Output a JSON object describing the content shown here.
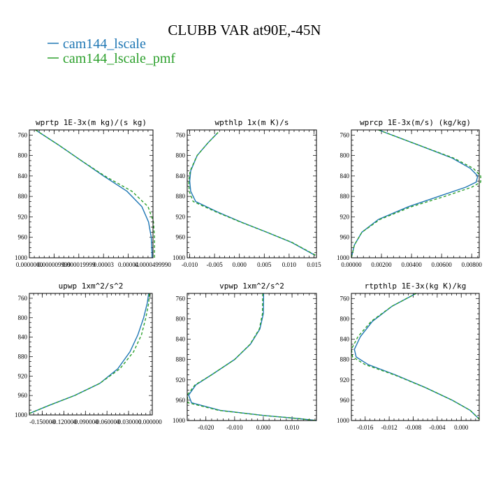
{
  "title": "CLUBB VAR at90E,-45N",
  "legend": [
    {
      "name": "cam144_lscale",
      "color": "#1f77b4",
      "dash": "none"
    },
    {
      "name": "cam144_lscale_pmf",
      "color": "#2ca02c",
      "dash": "4,3"
    }
  ],
  "chart_data": [
    {
      "type": "line",
      "title": "wprtp  1E-3x(m kg)/(s kg)",
      "y_ticks": [
        760,
        800,
        840,
        880,
        920,
        960,
        1000
      ],
      "ylim": [
        1000,
        750
      ],
      "x_ticks": [
        0.0,
        1e-05,
        2e-05,
        3e-05,
        4e-05,
        5e-05
      ],
      "x_tick_labels": [
        "0.0000000",
        "0.000009999",
        "0.000019999",
        "0.00003",
        "0.00004",
        "0.0000499990"
      ],
      "xlim": [
        0.0,
        5e-05
      ],
      "series": [
        {
          "name": "cam144_lscale",
          "points": [
            [
              2.5e-06,
              750
            ],
            [
              1.2e-05,
              780
            ],
            [
              2.1e-05,
              810
            ],
            [
              3e-05,
              840
            ],
            [
              3.95e-05,
              870
            ],
            [
              4.55e-05,
              900
            ],
            [
              4.82e-05,
              930
            ],
            [
              4.93e-05,
              960
            ],
            [
              4.96e-05,
              990
            ],
            [
              4.96e-05,
              1000
            ]
          ]
        },
        {
          "name": "cam144_lscale_pmf",
          "points": [
            [
              2.5e-06,
              750
            ],
            [
              1.2e-05,
              780
            ],
            [
              2.1e-05,
              810
            ],
            [
              3.05e-05,
              840
            ],
            [
              4.15e-05,
              870
            ],
            [
              4.8e-05,
              900
            ],
            [
              5.02e-05,
              930
            ],
            [
              5.06e-05,
              960
            ],
            [
              5.06e-05,
              990
            ],
            [
              5.06e-05,
              1000
            ]
          ]
        }
      ]
    },
    {
      "type": "line",
      "title": "wpthlp  1x(m K)/s",
      "y_ticks": [
        760,
        800,
        840,
        880,
        920,
        960,
        1000
      ],
      "ylim": [
        1000,
        750
      ],
      "x_ticks": [
        -0.01,
        -0.005,
        0.0,
        0.005,
        0.01,
        0.015
      ],
      "x_tick_labels": [
        "-0.010",
        "-0.005",
        "0.000",
        "0.005",
        "0.010",
        "0.015"
      ],
      "xlim": [
        -0.0105,
        0.0155
      ],
      "series": [
        {
          "name": "cam144_lscale",
          "points": [
            [
              -0.0043,
              755
            ],
            [
              -0.0063,
              775
            ],
            [
              -0.0085,
              800
            ],
            [
              -0.0098,
              830
            ],
            [
              -0.01,
              850
            ],
            [
              -0.0098,
              870
            ],
            [
              -0.0088,
              890
            ],
            [
              -0.0045,
              910
            ],
            [
              0.0003,
              930
            ],
            [
              0.0055,
              950
            ],
            [
              0.0105,
              970
            ],
            [
              0.0152,
              995
            ]
          ]
        },
        {
          "name": "cam144_lscale_pmf",
          "points": [
            [
              -0.0043,
              755
            ],
            [
              -0.0063,
              775
            ],
            [
              -0.0085,
              800
            ],
            [
              -0.0099,
              830
            ],
            [
              -0.0102,
              850
            ],
            [
              -0.0101,
              870
            ],
            [
              -0.0093,
              890
            ],
            [
              -0.0048,
              910
            ],
            [
              0.0002,
              930
            ],
            [
              0.0055,
              950
            ],
            [
              0.0106,
              970
            ],
            [
              0.0153,
              995
            ]
          ]
        }
      ]
    },
    {
      "type": "line",
      "title": "wprcp  1E-3x(m/s) (kg/kg)",
      "y_ticks": [
        760,
        800,
        840,
        880,
        920,
        960,
        1000
      ],
      "ylim": [
        1000,
        750
      ],
      "x_ticks": [
        0.0,
        0.002,
        0.004,
        0.006,
        0.008
      ],
      "x_tick_labels": [
        "0.00000",
        "0.00200",
        "0.00400",
        "0.00600",
        "0.00800"
      ],
      "xlim": [
        0.0,
        0.0085
      ],
      "series": [
        {
          "name": "cam144_lscale",
          "points": [
            [
              0.0018,
              750
            ],
            [
              0.0045,
              780
            ],
            [
              0.0067,
              805
            ],
            [
              0.0079,
              825
            ],
            [
              0.0084,
              840
            ],
            [
              0.0083,
              852
            ],
            [
              0.0076,
              862
            ],
            [
              0.0058,
              880
            ],
            [
              0.0038,
              900
            ],
            [
              0.0018,
              925
            ],
            [
              0.0007,
              950
            ],
            [
              0.0002,
              975
            ],
            [
              0.0,
              1000
            ]
          ]
        },
        {
          "name": "cam144_lscale_pmf",
          "points": [
            [
              0.0018,
              750
            ],
            [
              0.0045,
              780
            ],
            [
              0.0068,
              805
            ],
            [
              0.0081,
              825
            ],
            [
              0.0086,
              840
            ],
            [
              0.0086,
              852
            ],
            [
              0.008,
              862
            ],
            [
              0.0062,
              880
            ],
            [
              0.004,
              900
            ],
            [
              0.0019,
              925
            ],
            [
              0.0007,
              950
            ],
            [
              0.0002,
              975
            ],
            [
              0.0,
              1000
            ]
          ]
        }
      ]
    },
    {
      "type": "line",
      "title": "upwp  1xm^2/s^2",
      "y_ticks": [
        760,
        800,
        840,
        880,
        920,
        960,
        1000
      ],
      "ylim": [
        1000,
        750
      ],
      "x_ticks": [
        -0.15,
        -0.12,
        -0.09,
        -0.06,
        -0.03,
        0.0
      ],
      "x_tick_labels": [
        "-0.150000",
        "-0.120000",
        "-0.090000",
        "-0.060000",
        "-0.030000",
        "0.000000"
      ],
      "xlim": [
        -0.168,
        0.003
      ],
      "series": [
        {
          "name": "cam144_lscale",
          "points": [
            [
              -0.168,
              997
            ],
            [
              -0.14,
              980
            ],
            [
              -0.105,
              960
            ],
            [
              -0.07,
              935
            ],
            [
              -0.045,
              905
            ],
            [
              -0.028,
              870
            ],
            [
              -0.017,
              835
            ],
            [
              -0.009,
              800
            ],
            [
              -0.004,
              770
            ],
            [
              -0.002,
              750
            ]
          ]
        },
        {
          "name": "cam144_lscale_pmf",
          "points": [
            [
              -0.168,
              997
            ],
            [
              -0.14,
              980
            ],
            [
              -0.105,
              960
            ],
            [
              -0.07,
              935
            ],
            [
              -0.042,
              905
            ],
            [
              -0.023,
              870
            ],
            [
              -0.012,
              835
            ],
            [
              -0.006,
              800
            ],
            [
              -0.002,
              770
            ],
            [
              -0.001,
              750
            ]
          ]
        }
      ]
    },
    {
      "type": "line",
      "title": "vpwp  1xm^2/s^2",
      "y_ticks": [
        760,
        800,
        840,
        880,
        920,
        960,
        1000
      ],
      "ylim": [
        1000,
        750
      ],
      "x_ticks": [
        -0.02,
        -0.01,
        0.0,
        0.01
      ],
      "x_tick_labels": [
        "-0.020",
        "-0.010",
        "0.000",
        "0.010"
      ],
      "xlim": [
        -0.0265,
        0.0185
      ],
      "series": [
        {
          "name": "cam144_lscale",
          "points": [
            [
              0.0001,
              750
            ],
            [
              0.0,
              790
            ],
            [
              -0.0012,
              820
            ],
            [
              -0.0045,
              850
            ],
            [
              -0.01,
              880
            ],
            [
              -0.018,
              910
            ],
            [
              -0.0235,
              930
            ],
            [
              -0.026,
              950
            ],
            [
              -0.025,
              965
            ],
            [
              -0.015,
              980
            ],
            [
              0.0,
              990
            ],
            [
              0.012,
              996
            ],
            [
              0.0185,
              1000
            ]
          ]
        },
        {
          "name": "cam144_lscale_pmf",
          "points": [
            [
              -0.0002,
              750
            ],
            [
              -0.0003,
              790
            ],
            [
              -0.0014,
              820
            ],
            [
              -0.0046,
              850
            ],
            [
              -0.01,
              880
            ],
            [
              -0.018,
              910
            ],
            [
              -0.0238,
              930
            ],
            [
              -0.0265,
              950
            ],
            [
              -0.0262,
              965
            ],
            [
              -0.0155,
              980
            ],
            [
              0.0,
              990
            ],
            [
              0.012,
              996
            ],
            [
              0.0185,
              1000
            ]
          ]
        }
      ]
    },
    {
      "type": "line",
      "title": "rtpthlp  1E-3x(kg K)/kg",
      "y_ticks": [
        760,
        800,
        840,
        880,
        920,
        960,
        1000
      ],
      "ylim": [
        1000,
        750
      ],
      "x_ticks": [
        -0.016,
        -0.012,
        -0.008,
        -0.004,
        0.0
      ],
      "x_tick_labels": [
        "-0.016",
        "-0.012",
        "-0.008",
        "-0.004",
        "0.000"
      ],
      "xlim": [
        -0.0183,
        0.003
      ],
      "series": [
        {
          "name": "cam144_lscale",
          "points": [
            [
              -0.0075,
              750
            ],
            [
              -0.0115,
              775
            ],
            [
              -0.0148,
              805
            ],
            [
              -0.0168,
              835
            ],
            [
              -0.0178,
              860
            ],
            [
              -0.0175,
              875
            ],
            [
              -0.0155,
              890
            ],
            [
              -0.011,
              910
            ],
            [
              -0.006,
              935
            ],
            [
              -0.0015,
              960
            ],
            [
              0.0015,
              980
            ],
            [
              0.003,
              997
            ]
          ]
        },
        {
          "name": "cam144_lscale_pmf",
          "points": [
            [
              -0.0075,
              750
            ],
            [
              -0.0115,
              775
            ],
            [
              -0.015,
              805
            ],
            [
              -0.0172,
              835
            ],
            [
              -0.0183,
              860
            ],
            [
              -0.0181,
              875
            ],
            [
              -0.016,
              890
            ],
            [
              -0.0112,
              910
            ],
            [
              -0.006,
              935
            ],
            [
              -0.0015,
              960
            ],
            [
              0.0015,
              980
            ],
            [
              0.003,
              997
            ]
          ]
        }
      ]
    }
  ]
}
